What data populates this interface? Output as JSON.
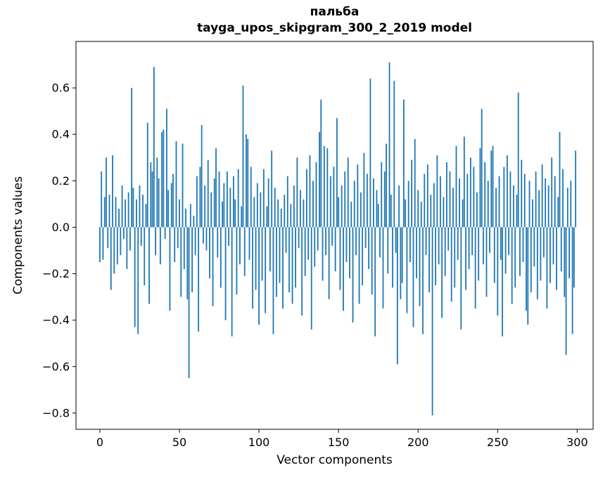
{
  "figure": {
    "background": "#ffffff"
  },
  "chart_data": {
    "type": "bar",
    "title_line1": "пальба",
    "title_line2": "tayga_upos_skipgram_300_2_2019 model",
    "xlabel": "Vector components",
    "ylabel": "Components values",
    "bar_color": "#1f77b4",
    "axis_color": "#000000",
    "grid": false,
    "legend": null,
    "x_is_index": true,
    "n_bars": 300,
    "xlim": [
      -15,
      310
    ],
    "ylim": [
      -0.87,
      0.8
    ],
    "x_ticks": [
      0,
      50,
      100,
      150,
      200,
      250,
      300
    ],
    "y_ticks": [
      0.6,
      0.4,
      0.2,
      0.0,
      -0.2,
      -0.4,
      -0.6,
      -0.8
    ],
    "values": [
      -0.15,
      0.24,
      -0.14,
      0.13,
      0.3,
      -0.09,
      0.14,
      -0.27,
      0.31,
      -0.2,
      0.13,
      -0.16,
      0.08,
      -0.12,
      0.18,
      -0.05,
      0.12,
      -0.18,
      0.15,
      -0.1,
      0.6,
      0.17,
      -0.43,
      0.12,
      -0.46,
      0.18,
      -0.08,
      0.14,
      -0.25,
      0.1,
      0.45,
      -0.33,
      0.28,
      0.24,
      0.69,
      -0.12,
      0.3,
      0.21,
      -0.16,
      0.41,
      0.42,
      -0.05,
      0.51,
      0.16,
      -0.36,
      0.19,
      0.23,
      -0.15,
      0.37,
      -0.09,
      0.12,
      -0.3,
      0.36,
      -0.18,
      0.08,
      -0.31,
      -0.65,
      0.1,
      -0.28,
      0.05,
      -0.12,
      0.22,
      -0.45,
      0.26,
      0.44,
      -0.07,
      0.18,
      -0.1,
      0.29,
      -0.22,
      0.15,
      -0.34,
      0.21,
      0.34,
      -0.13,
      0.24,
      -0.26,
      0.11,
      0.19,
      -0.4,
      0.24,
      -0.08,
      0.17,
      -0.47,
      0.22,
      0.12,
      -0.29,
      0.25,
      -0.16,
      0.09,
      0.61,
      -0.21,
      0.4,
      0.38,
      -0.14,
      0.26,
      -0.35,
      0.13,
      -0.27,
      0.19,
      -0.42,
      0.15,
      -0.23,
      0.25,
      -0.37,
      0.09,
      0.21,
      -0.19,
      0.33,
      -0.46,
      0.17,
      -0.3,
      0.12,
      -0.24,
      0.08,
      -0.35,
      0.14,
      -0.11,
      0.22,
      -0.28,
      0.1,
      -0.33,
      0.18,
      -0.26,
      0.3,
      -0.09,
      0.16,
      -0.38,
      0.12,
      -0.21,
      0.25,
      -0.14,
      0.31,
      -0.44,
      0.2,
      -0.17,
      0.28,
      -0.1,
      0.41,
      0.55,
      -0.23,
      0.35,
      -0.12,
      0.34,
      -0.31,
      0.22,
      -0.08,
      0.26,
      -0.19,
      0.47,
      0.13,
      -0.27,
      0.18,
      -0.36,
      0.24,
      -0.15,
      0.3,
      -0.22,
      0.11,
      -0.41,
      0.2,
      -0.12,
      0.27,
      -0.33,
      0.15,
      -0.25,
      0.32,
      -0.09,
      0.23,
      -0.18,
      0.64,
      -0.29,
      0.21,
      -0.47,
      0.16,
      0.1,
      -0.13,
      0.28,
      -0.35,
      0.24,
      0.36,
      -0.2,
      0.71,
      0.14,
      -0.26,
      0.63,
      -0.11,
      -0.59,
      0.18,
      -0.31,
      -0.24,
      0.55,
      0.12,
      -0.37,
      0.2,
      -0.15,
      0.29,
      -0.43,
      0.38,
      -0.22,
      0.16,
      -0.34,
      0.11,
      -0.46,
      0.23,
      -0.12,
      0.27,
      -0.28,
      0.14,
      -0.81,
      0.19,
      -0.25,
      0.31,
      -0.16,
      0.22,
      -0.39,
      0.13,
      -0.21,
      0.28,
      -0.1,
      0.24,
      -0.32,
      0.17,
      -0.26,
      0.35,
      -0.14,
      0.21,
      -0.44,
      0.12,
      0.39,
      -0.27,
      0.23,
      -0.18,
      0.3,
      -0.12,
      0.26,
      -0.35,
      0.15,
      -0.23,
      0.34,
      0.51,
      -0.16,
      0.28,
      -0.3,
      0.2,
      -0.11,
      0.33,
      0.35,
      -0.24,
      0.17,
      -0.38,
      0.22,
      -0.14,
      -0.47,
      0.26,
      -0.2,
      0.31,
      -0.12,
      0.24,
      -0.33,
      0.18,
      -0.26,
      0.14,
      0.58,
      -0.21,
      0.29,
      -0.15,
      0.23,
      -0.36,
      -0.42,
      0.2,
      -0.28,
      0.12,
      -0.17,
      0.24,
      -0.31,
      0.16,
      -0.23,
      0.27,
      -0.13,
      0.21,
      -0.35,
      0.18,
      -0.24,
      0.3,
      -0.16,
      0.22,
      -0.27,
      0.13,
      0.41,
      -0.19,
      0.25,
      -0.3,
      -0.55,
      0.17,
      -0.22,
      0.2,
      -0.46,
      -0.26,
      0.33
    ]
  }
}
